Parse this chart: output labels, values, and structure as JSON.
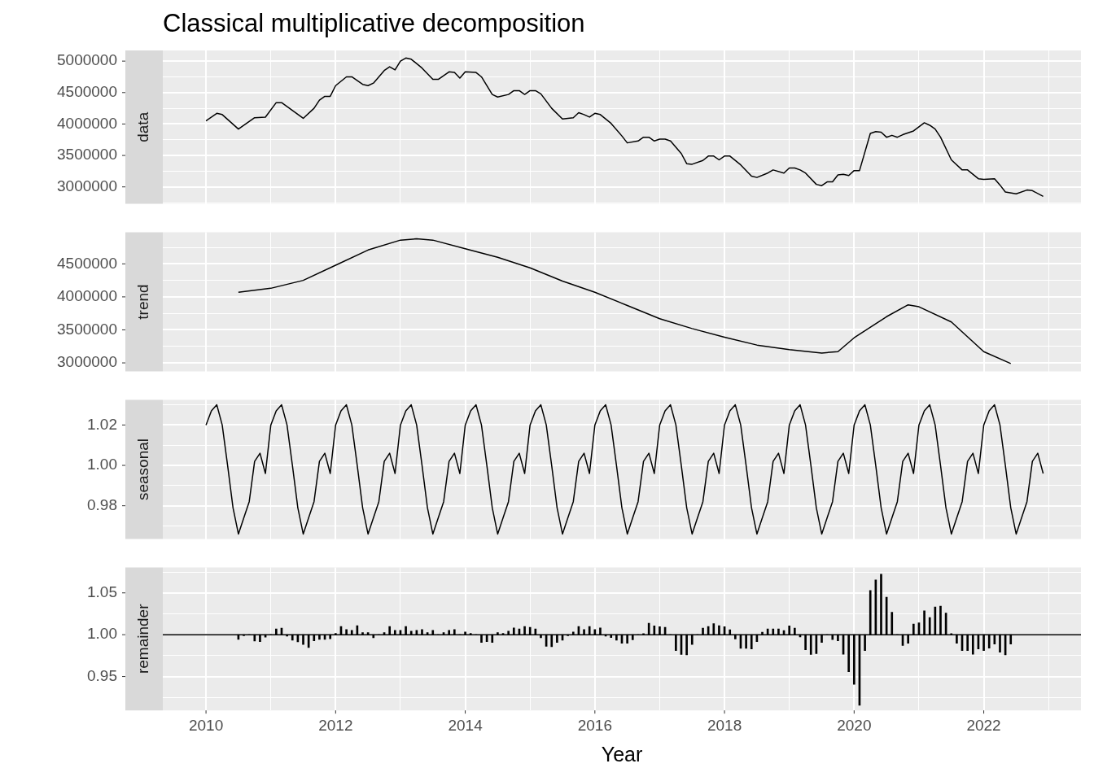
{
  "chart_data": [
    {
      "type": "line",
      "title": "Classical multiplicative decomposition",
      "ylabel": "data",
      "xlim": [
        "2009-05",
        "2023-07"
      ],
      "xticks": [
        "2010",
        {
          "value": "2011",
          "label": null
        },
        "2012",
        {
          "value": "2013",
          "label": null
        },
        "2014",
        {
          "value": "2015",
          "label": null
        },
        "2016",
        {
          "value": "2017",
          "label": null
        },
        "2018",
        {
          "value": "2019",
          "label": null
        },
        "2020",
        {
          "value": "2021",
          "label": null
        },
        "2022",
        {
          "value": "2023",
          "label": null
        }
      ],
      "ylim": [
        2730000,
        5170000
      ],
      "yticks": [
        {
          "value": 2750000,
          "label": null
        },
        3000000,
        {
          "value": 3250000,
          "label": null
        },
        3500000,
        {
          "value": 3750000,
          "label": null
        },
        4000000,
        {
          "value": 4250000,
          "label": null
        },
        4500000,
        {
          "value": 4750000,
          "label": null
        },
        5000000
      ],
      "grid": true,
      "tick_labels": "y",
      "marker": "none",
      "series": [
        {
          "color": "#000000",
          "x": [
            "2010-01",
            "2010-03",
            "2010-04",
            "2010-07",
            "2010-10",
            "2010-12",
            "2011-02",
            "2011-03",
            "2011-07",
            "2011-09",
            "2011-10",
            "2011-11",
            "2011-12",
            "2012-01",
            "2012-03",
            "2012-04",
            "2012-06",
            "2012-07",
            "2012-08",
            "2012-10",
            "2012-11",
            "2012-12",
            "2013-01",
            "2013-02",
            "2013-03",
            "2013-05",
            "2013-07",
            "2013-08",
            "2013-10",
            "2013-11",
            "2013-12",
            "2014-01",
            "2014-03",
            "2014-04",
            "2014-06",
            "2014-07",
            "2014-09",
            "2014-10",
            "2014-11",
            "2014-12",
            "2015-01",
            "2015-02",
            "2015-03",
            "2015-05",
            "2015-07",
            "2015-09",
            "2015-10",
            "2015-11",
            "2015-12",
            "2016-01",
            "2016-02",
            "2016-04",
            "2016-06",
            "2016-07",
            "2016-09",
            "2016-10",
            "2016-11",
            "2016-12",
            "2017-01",
            "2017-02",
            "2017-03",
            "2017-05",
            "2017-06",
            "2017-07",
            "2017-09",
            "2017-10",
            "2017-11",
            "2017-12",
            "2018-01",
            "2018-02",
            "2018-04",
            "2018-06",
            "2018-07",
            "2018-09",
            "2018-10",
            "2018-12",
            "2019-01",
            "2019-02",
            "2019-03",
            "2019-04",
            "2019-06",
            "2019-07",
            "2019-08",
            "2019-09",
            "2019-10",
            "2019-11",
            "2019-12",
            "2020-01",
            "2020-02",
            "2020-04",
            "2020-05",
            "2020-06",
            "2020-07",
            "2020-08",
            "2020-09",
            "2020-10",
            "2020-12",
            "2021-02",
            "2021-03",
            "2021-04",
            "2021-05",
            "2021-07",
            "2021-09",
            "2021-10",
            "2021-12",
            "2022-01",
            "2022-03",
            "2022-04",
            "2022-05",
            "2022-07",
            "2022-09",
            "2022-10",
            "2022-12"
          ],
          "values": [
            4050000,
            4170000,
            4150000,
            3920000,
            4100000,
            4110000,
            4340000,
            4340000,
            4090000,
            4250000,
            4380000,
            4440000,
            4440000,
            4610000,
            4750000,
            4750000,
            4630000,
            4610000,
            4650000,
            4850000,
            4910000,
            4860000,
            5000000,
            5050000,
            5030000,
            4890000,
            4710000,
            4710000,
            4830000,
            4820000,
            4730000,
            4830000,
            4820000,
            4750000,
            4470000,
            4430000,
            4470000,
            4530000,
            4530000,
            4470000,
            4530000,
            4530000,
            4480000,
            4250000,
            4080000,
            4100000,
            4180000,
            4150000,
            4110000,
            4170000,
            4150000,
            4010000,
            3810000,
            3700000,
            3730000,
            3790000,
            3790000,
            3730000,
            3760000,
            3760000,
            3730000,
            3530000,
            3370000,
            3360000,
            3420000,
            3490000,
            3490000,
            3430000,
            3490000,
            3490000,
            3350000,
            3170000,
            3150000,
            3220000,
            3270000,
            3220000,
            3300000,
            3300000,
            3270000,
            3220000,
            3040000,
            3020000,
            3080000,
            3080000,
            3190000,
            3200000,
            3180000,
            3260000,
            3260000,
            3850000,
            3880000,
            3870000,
            3790000,
            3820000,
            3790000,
            3830000,
            3890000,
            4020000,
            3980000,
            3920000,
            3790000,
            3430000,
            3270000,
            3270000,
            3130000,
            3120000,
            3130000,
            3030000,
            2920000,
            2890000,
            2950000,
            2940000,
            2850000
          ]
        }
      ]
    },
    {
      "type": "line",
      "ylabel": "trend",
      "xlim": [
        "2009-05",
        "2023-07"
      ],
      "xticks": [
        "2010",
        {
          "value": "2011",
          "label": null
        },
        "2012",
        {
          "value": "2013",
          "label": null
        },
        "2014",
        {
          "value": "2015",
          "label": null
        },
        "2016",
        {
          "value": "2017",
          "label": null
        },
        "2018",
        {
          "value": "2019",
          "label": null
        },
        "2020",
        {
          "value": "2021",
          "label": null
        },
        "2022",
        {
          "value": "2023",
          "label": null
        }
      ],
      "ylim": [
        2870000,
        4980000
      ],
      "yticks": [
        3000000,
        {
          "value": 3250000,
          "label": null
        },
        3500000,
        {
          "value": 3750000,
          "label": null
        },
        4000000,
        {
          "value": 4250000,
          "label": null
        },
        4500000,
        {
          "value": 4750000,
          "label": null
        }
      ],
      "grid": true,
      "tick_labels": "y",
      "marker": "none",
      "series": [
        {
          "color": "#000000",
          "x": [
            "2010-07",
            "2011-01",
            "2011-07",
            "2012-01",
            "2012-07",
            "2013-01",
            "2013-04",
            "2013-07",
            "2014-01",
            "2014-07",
            "2015-01",
            "2015-07",
            "2016-01",
            "2016-07",
            "2017-01",
            "2017-07",
            "2018-01",
            "2018-07",
            "2019-01",
            "2019-07",
            "2019-10",
            "2020-01",
            "2020-07",
            "2020-11",
            "2021-01",
            "2021-07",
            "2022-01",
            "2022-06"
          ],
          "values": [
            4070000,
            4130000,
            4250000,
            4480000,
            4710000,
            4860000,
            4880000,
            4860000,
            4730000,
            4600000,
            4440000,
            4240000,
            4070000,
            3870000,
            3670000,
            3520000,
            3390000,
            3270000,
            3200000,
            3150000,
            3170000,
            3380000,
            3700000,
            3880000,
            3850000,
            3620000,
            3170000,
            2990000
          ]
        }
      ]
    },
    {
      "type": "line",
      "ylabel": "seasonal",
      "xlim": [
        "2009-05",
        "2023-07"
      ],
      "xticks": [
        "2010",
        {
          "value": "2011",
          "label": null
        },
        "2012",
        {
          "value": "2013",
          "label": null
        },
        "2014",
        {
          "value": "2015",
          "label": null
        },
        "2016",
        {
          "value": "2017",
          "label": null
        },
        "2018",
        {
          "value": "2019",
          "label": null
        },
        "2020",
        {
          "value": "2021",
          "label": null
        },
        "2022",
        {
          "value": "2023",
          "label": null
        }
      ],
      "ylim": [
        0.9635,
        1.0325
      ],
      "yticks": [
        {
          "value": 0.97,
          "label": null
        },
        {
          "value": 0.98,
          "label": "0.98"
        },
        {
          "value": 0.99,
          "label": null
        },
        {
          "value": 1,
          "label": "1.00"
        },
        {
          "value": 1.01,
          "label": null
        },
        {
          "value": 1.02,
          "label": "1.02"
        },
        {
          "value": 1.03,
          "label": null
        }
      ],
      "grid": true,
      "tick_labels": "y",
      "marker": "none",
      "series": [
        {
          "color": "#000000",
          "x": [
            "2010-01",
            "2010-02",
            "2010-03",
            "2010-04",
            "2010-05",
            "2010-06",
            "2010-07",
            "2010-08",
            "2010-09",
            "2010-10",
            "2010-11",
            "2010-12",
            "2011-01",
            "2011-02",
            "2011-03",
            "2011-04",
            "2011-05",
            "2011-06",
            "2011-07",
            "2011-08",
            "2011-09",
            "2011-10",
            "2011-11",
            "2011-12",
            "2012-01",
            "2012-02",
            "2012-03",
            "2012-04",
            "2012-05",
            "2012-06",
            "2012-07",
            "2012-08",
            "2012-09",
            "2012-10",
            "2012-11",
            "2012-12",
            "2013-01",
            "2013-02",
            "2013-03",
            "2013-04",
            "2013-05",
            "2013-06",
            "2013-07",
            "2013-08",
            "2013-09",
            "2013-10",
            "2013-11",
            "2013-12",
            "2014-01",
            "2014-02",
            "2014-03",
            "2014-04",
            "2014-05",
            "2014-06",
            "2014-07",
            "2014-08",
            "2014-09",
            "2014-10",
            "2014-11",
            "2014-12",
            "2015-01",
            "2015-02",
            "2015-03",
            "2015-04",
            "2015-05",
            "2015-06",
            "2015-07",
            "2015-08",
            "2015-09",
            "2015-10",
            "2015-11",
            "2015-12",
            "2016-01",
            "2016-02",
            "2016-03",
            "2016-04",
            "2016-05",
            "2016-06",
            "2016-07",
            "2016-08",
            "2016-09",
            "2016-10",
            "2016-11",
            "2016-12",
            "2017-01",
            "2017-02",
            "2017-03",
            "2017-04",
            "2017-05",
            "2017-06",
            "2017-07",
            "2017-08",
            "2017-09",
            "2017-10",
            "2017-11",
            "2017-12",
            "2018-01",
            "2018-02",
            "2018-03",
            "2018-04",
            "2018-05",
            "2018-06",
            "2018-07",
            "2018-08",
            "2018-09",
            "2018-10",
            "2018-11",
            "2018-12",
            "2019-01",
            "2019-02",
            "2019-03",
            "2019-04",
            "2019-05",
            "2019-06",
            "2019-07",
            "2019-08",
            "2019-09",
            "2019-10",
            "2019-11",
            "2019-12",
            "2020-01",
            "2020-02",
            "2020-03",
            "2020-04",
            "2020-05",
            "2020-06",
            "2020-07",
            "2020-08",
            "2020-09",
            "2020-10",
            "2020-11",
            "2020-12",
            "2021-01",
            "2021-02",
            "2021-03",
            "2021-04",
            "2021-05",
            "2021-06",
            "2021-07",
            "2021-08",
            "2021-09",
            "2021-10",
            "2021-11",
            "2021-12",
            "2022-01",
            "2022-02",
            "2022-03",
            "2022-04",
            "2022-05",
            "2022-06",
            "2022-07",
            "2022-08",
            "2022-09",
            "2022-10",
            "2022-11",
            "2022-12"
          ],
          "values": [
            1.02,
            1.027,
            1.03,
            1.02,
            1.0,
            0.979,
            0.966,
            0.974,
            0.982,
            1.002,
            1.006,
            0.996,
            1.02,
            1.027,
            1.03,
            1.02,
            1.0,
            0.979,
            0.966,
            0.974,
            0.982,
            1.002,
            1.006,
            0.996,
            1.02,
            1.027,
            1.03,
            1.02,
            1.0,
            0.979,
            0.966,
            0.974,
            0.982,
            1.002,
            1.006,
            0.996,
            1.02,
            1.027,
            1.03,
            1.02,
            1.0,
            0.979,
            0.966,
            0.974,
            0.982,
            1.002,
            1.006,
            0.996,
            1.02,
            1.027,
            1.03,
            1.02,
            1.0,
            0.979,
            0.966,
            0.974,
            0.982,
            1.002,
            1.006,
            0.996,
            1.02,
            1.027,
            1.03,
            1.02,
            1.0,
            0.979,
            0.966,
            0.974,
            0.982,
            1.002,
            1.006,
            0.996,
            1.02,
            1.027,
            1.03,
            1.02,
            1.0,
            0.979,
            0.966,
            0.974,
            0.982,
            1.002,
            1.006,
            0.996,
            1.02,
            1.027,
            1.03,
            1.02,
            1.0,
            0.979,
            0.966,
            0.974,
            0.982,
            1.002,
            1.006,
            0.996,
            1.02,
            1.027,
            1.03,
            1.02,
            1.0,
            0.979,
            0.966,
            0.974,
            0.982,
            1.002,
            1.006,
            0.996,
            1.02,
            1.027,
            1.03,
            1.02,
            1.0,
            0.979,
            0.966,
            0.974,
            0.982,
            1.002,
            1.006,
            0.996,
            1.02,
            1.027,
            1.03,
            1.02,
            1.0,
            0.979,
            0.966,
            0.974,
            0.982,
            1.002,
            1.006,
            0.996,
            1.02,
            1.027,
            1.03,
            1.02,
            1.0,
            0.979,
            0.966,
            0.974,
            0.982,
            1.002,
            1.006,
            0.996,
            1.02,
            1.027,
            1.03,
            1.02,
            1.0,
            0.979,
            0.966,
            0.974,
            0.982,
            1.002,
            1.006,
            0.996
          ]
        }
      ]
    },
    {
      "type": "bar",
      "ylabel": "remainder",
      "xlabel": "Year",
      "xlim": [
        "2009-05",
        "2023-07"
      ],
      "xticks": [
        "2010",
        {
          "value": "2011",
          "label": null
        },
        "2012",
        {
          "value": "2013",
          "label": null
        },
        "2014",
        {
          "value": "2015",
          "label": null
        },
        "2016",
        {
          "value": "2017",
          "label": null
        },
        "2018",
        {
          "value": "2019",
          "label": null
        },
        "2020",
        {
          "value": "2021",
          "label": null
        },
        "2022",
        {
          "value": "2023",
          "label": null
        }
      ],
      "ylim": [
        0.9095,
        1.0805
      ],
      "yticks": [
        {
          "value": 0.925,
          "label": null
        },
        {
          "value": 0.95,
          "label": "0.95"
        },
        {
          "value": 0.975,
          "label": null
        },
        {
          "value": 1,
          "label": "1.00"
        },
        {
          "value": 1.025,
          "label": null
        },
        {
          "value": 1.05,
          "label": "1.05"
        },
        {
          "value": 1.075,
          "label": null
        }
      ],
      "grid": true,
      "ref_lines": [
        {
          "axis": "y",
          "value": 1,
          "color": "#000000"
        }
      ],
      "series": [
        {
          "color": "#000000",
          "x": [
            "2010-07",
            "2010-08",
            "2010-09",
            "2010-10",
            "2010-11",
            "2010-12",
            "2011-01",
            "2011-02",
            "2011-03",
            "2011-04",
            "2011-05",
            "2011-06",
            "2011-07",
            "2011-08",
            "2011-09",
            "2011-10",
            "2011-11",
            "2011-12",
            "2012-01",
            "2012-02",
            "2012-03",
            "2012-04",
            "2012-05",
            "2012-06",
            "2012-07",
            "2012-08",
            "2012-09",
            "2012-10",
            "2012-11",
            "2012-12",
            "2013-01",
            "2013-02",
            "2013-03",
            "2013-04",
            "2013-05",
            "2013-06",
            "2013-07",
            "2013-08",
            "2013-09",
            "2013-10",
            "2013-11",
            "2013-12",
            "2014-01",
            "2014-02",
            "2014-03",
            "2014-04",
            "2014-05",
            "2014-06",
            "2014-07",
            "2014-08",
            "2014-09",
            "2014-10",
            "2014-11",
            "2014-12",
            "2015-01",
            "2015-02",
            "2015-03",
            "2015-04",
            "2015-05",
            "2015-06",
            "2015-07",
            "2015-08",
            "2015-09",
            "2015-10",
            "2015-11",
            "2015-12",
            "2016-01",
            "2016-02",
            "2016-03",
            "2016-04",
            "2016-05",
            "2016-06",
            "2016-07",
            "2016-08",
            "2016-09",
            "2016-10",
            "2016-11",
            "2016-12",
            "2017-01",
            "2017-02",
            "2017-03",
            "2017-04",
            "2017-05",
            "2017-06",
            "2017-07",
            "2017-08",
            "2017-09",
            "2017-10",
            "2017-11",
            "2017-12",
            "2018-01",
            "2018-02",
            "2018-03",
            "2018-04",
            "2018-05",
            "2018-06",
            "2018-07",
            "2018-08",
            "2018-09",
            "2018-10",
            "2018-11",
            "2018-12",
            "2019-01",
            "2019-02",
            "2019-03",
            "2019-04",
            "2019-05",
            "2019-06",
            "2019-07",
            "2019-08",
            "2019-09",
            "2019-10",
            "2019-11",
            "2019-12",
            "2020-01",
            "2020-02",
            "2020-03",
            "2020-04",
            "2020-05",
            "2020-06",
            "2020-07",
            "2020-08",
            "2020-09",
            "2020-10",
            "2020-11",
            "2020-12",
            "2021-01",
            "2021-02",
            "2021-03",
            "2021-04",
            "2021-05",
            "2021-06",
            "2021-07",
            "2021-08",
            "2021-09",
            "2021-10",
            "2021-11",
            "2021-12",
            "2022-01",
            "2022-02",
            "2022-03",
            "2022-04",
            "2022-05",
            "2022-06"
          ],
          "base": [
            1,
            1,
            1,
            1,
            1,
            1,
            1,
            1,
            1,
            1,
            1,
            1,
            1,
            1,
            1,
            1,
            1,
            1,
            1,
            1,
            1,
            1,
            1,
            1,
            1,
            1,
            1,
            1,
            1,
            1,
            1,
            1,
            1,
            1,
            1,
            1,
            1,
            1,
            1,
            1,
            1,
            1,
            1,
            1,
            1,
            1,
            1,
            1,
            1,
            1,
            1,
            1,
            1,
            1,
            1,
            1,
            1,
            1,
            1,
            1,
            1,
            1,
            1,
            1,
            1,
            1,
            1,
            1,
            1,
            1,
            1,
            1,
            1,
            1,
            1,
            1,
            1,
            1,
            1,
            1,
            1,
            1,
            1,
            1,
            1,
            1,
            1,
            1,
            1,
            1,
            1,
            1,
            1,
            1,
            1,
            1,
            1,
            1,
            1,
            1,
            1,
            1,
            1,
            1,
            1,
            1,
            1,
            1,
            1,
            1,
            1,
            1,
            1,
            1,
            1,
            1,
            1,
            1,
            1,
            1,
            1,
            1,
            1,
            1,
            1,
            1,
            1,
            1,
            1,
            1,
            1,
            1,
            1,
            1,
            1,
            1,
            1,
            1,
            1,
            1,
            1,
            1,
            1,
            1
          ],
          "values": [
            -0.0056,
            -0.0013,
            0,
            -0.0075,
            -0.0082,
            -0.003,
            0,
            0.0069,
            0.0079,
            -0.0016,
            -0.0066,
            -0.0085,
            -0.0118,
            -0.0154,
            -0.0072,
            -0.0056,
            -0.0056,
            -0.0049,
            0.0016,
            0.0098,
            0.0062,
            0.0052,
            0.0108,
            0.0026,
            0.0026,
            -0.0036,
            0,
            0.0026,
            0.0098,
            0.0052,
            0.0052,
            0.0098,
            0.0043,
            0.0052,
            0.0062,
            0.0026,
            0.0052,
            0,
            0.0026,
            0.0052,
            0.0062,
            0,
            0.0033,
            0.0016,
            0,
            -0.0092,
            -0.0082,
            -0.0092,
            0.0026,
            0.0016,
            0.0043,
            0.0082,
            0.0069,
            0.0098,
            0.0088,
            0.0069,
            -0.0036,
            -0.0138,
            -0.0144,
            -0.0092,
            -0.0066,
            -0.0013,
            0.0033,
            0.0098,
            0.0062,
            0.0098,
            0.0062,
            0.0082,
            -0.0016,
            -0.0033,
            -0.0066,
            -0.0102,
            -0.0102,
            -0.0062,
            0,
            0.0013,
            0.0138,
            0.0105,
            0.0095,
            0.0088,
            0,
            -0.019,
            -0.0236,
            -0.0242,
            -0.0118,
            0,
            0.0079,
            0.0098,
            0.0131,
            0.0108,
            0.0095,
            0.0059,
            -0.0052,
            -0.0164,
            -0.0164,
            -0.017,
            -0.0082,
            0.0029,
            0.0069,
            0.0069,
            0.0069,
            0.0049,
            0.0105,
            0.0079,
            -0.0026,
            -0.018,
            -0.0236,
            -0.0226,
            -0.0092,
            0,
            -0.0059,
            -0.0072,
            -0.0233,
            -0.0442,
            -0.0593,
            -0.0845,
            -0.019,
            0.0528,
            0.0655,
            0.0724,
            0.0449,
            0.0269,
            0,
            -0.0128,
            -0.0102,
            0.0128,
            0.0141,
            0.0285,
            0.0206,
            0.0331,
            0.0341,
            0.0259,
            0.0013,
            -0.0102,
            -0.019,
            -0.019,
            -0.0233,
            -0.017,
            -0.019,
            -0.0161,
            -0.0111,
            -0.021,
            -0.0242,
            -0.0111
          ]
        }
      ]
    }
  ]
}
